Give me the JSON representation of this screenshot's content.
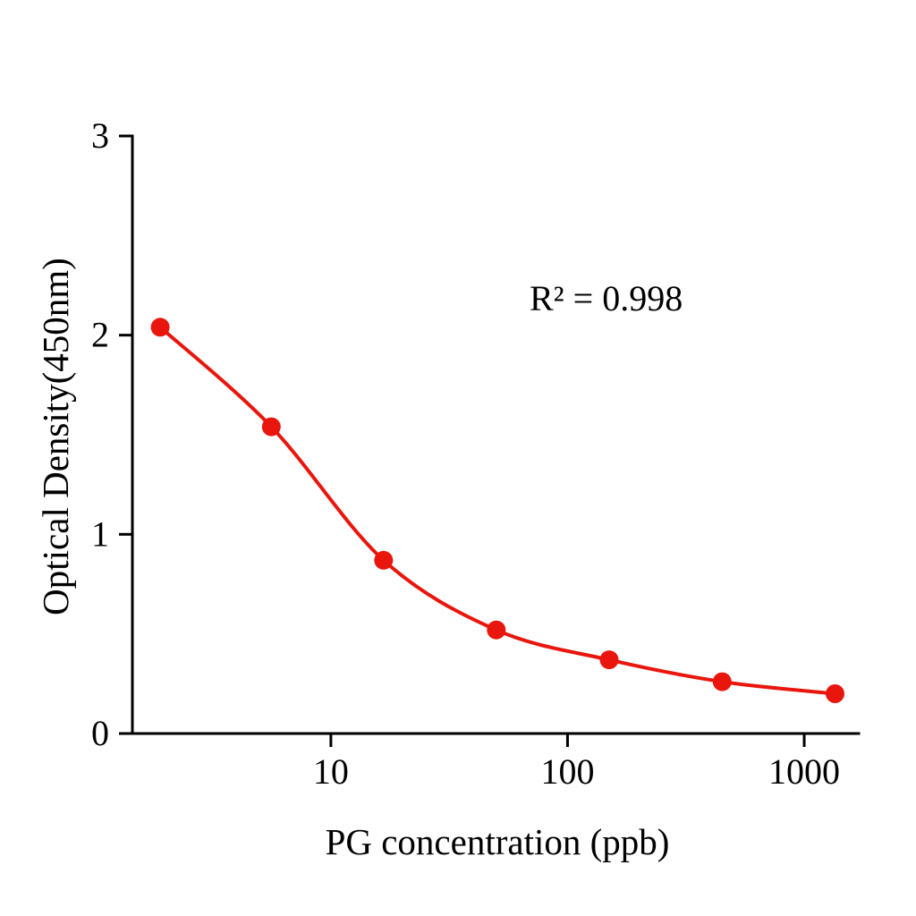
{
  "figure": {
    "background": "#ffffff"
  },
  "chart_data": {
    "type": "scatter",
    "subtype": "standard-curve-with-sigmoidal-fit",
    "x_scale": "log10",
    "x": [
      1.9,
      5.6,
      16.7,
      50,
      150,
      450,
      1350
    ],
    "y": [
      2.04,
      1.54,
      0.87,
      0.52,
      0.37,
      0.26,
      0.2
    ],
    "title": "",
    "xlabel": "PG concentration (ppb)",
    "ylabel": "Optical Density(450nm)",
    "annotation": "R² = 0.998",
    "x_ticks": [
      10,
      100,
      1000
    ],
    "x_tick_labels": [
      "10",
      "100",
      "1000"
    ],
    "y_ticks": [
      0,
      1,
      2,
      3
    ],
    "y_tick_labels": [
      "0",
      "1",
      "2",
      "3"
    ],
    "xlim": [
      1.45,
      1700
    ],
    "ylim": [
      0,
      3
    ],
    "grid": false,
    "legend": "none",
    "series_color": "#e8160d",
    "axis_color": "#000000",
    "marker": "circle",
    "marker_radius_px": 10.5,
    "curve_stroke_px": 4,
    "axis_stroke_px": 3
  }
}
